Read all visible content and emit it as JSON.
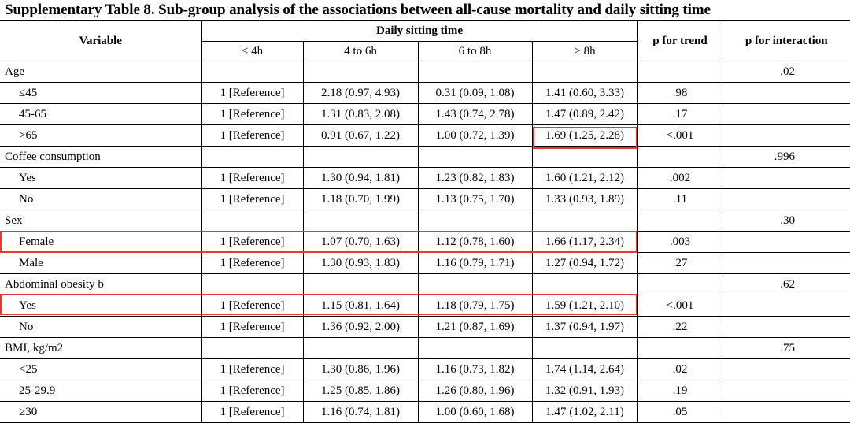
{
  "title": "Supplementary Table 8. Sub-group analysis of the associations between all-cause mortality and daily sitting time",
  "header": {
    "variable": "Variable",
    "group": "Daily sitting time",
    "p_trend": "p for trend",
    "p_interaction": "p for interaction",
    "columns": [
      "< 4h",
      "4 to 6h",
      "6 to 8h",
      "> 8h"
    ]
  },
  "rows": [
    {
      "label": "Age",
      "group": true,
      "p_interaction": ".02"
    },
    {
      "label": "≤45",
      "c1": "1 [Reference]",
      "c2": "2.18 (0.97, 4.93)",
      "c3": "0.31 (0.09, 1.08)",
      "c4": "1.41 (0.60, 3.33)",
      "p_trend": ".98"
    },
    {
      "label": "45-65",
      "c1": "1 [Reference]",
      "c2": "1.31 (0.83, 2.08)",
      "c3": "1.43 (0.74, 2.78)",
      "c4": "1.47 (0.89, 2.42)",
      "p_trend": ".17"
    },
    {
      "label": ">65",
      "c1": "1 [Reference]",
      "c2": "0.91 (0.67, 1.22)",
      "c3": "1.00 (0.72, 1.39)",
      "c4": "1.69 (1.25, 2.28)",
      "p_trend": "<.001"
    },
    {
      "label": "Coffee consumption",
      "group": true,
      "p_interaction": ".996"
    },
    {
      "label": "Yes",
      "c1": "1 [Reference]",
      "c2": "1.30 (0.94, 1.81)",
      "c3": "1.23 (0.82, 1.83)",
      "c4": "1.60 (1.21, 2.12)",
      "p_trend": ".002"
    },
    {
      "label": "No",
      "c1": "1 [Reference]",
      "c2": "1.18 (0.70, 1.99)",
      "c3": "1.13 (0.75, 1.70)",
      "c4": "1.33 (0.93, 1.89)",
      "p_trend": ".11"
    },
    {
      "label": "Sex",
      "group": true,
      "p_interaction": ".30"
    },
    {
      "label": "Female",
      "c1": "1 [Reference]",
      "c2": "1.07 (0.70, 1.63)",
      "c3": "1.12 (0.78, 1.60)",
      "c4": "1.66 (1.17, 2.34)",
      "p_trend": ".003"
    },
    {
      "label": "Male",
      "c1": "1 [Reference]",
      "c2": "1.30 (0.93, 1.83)",
      "c3": "1.16 (0.79, 1.71)",
      "c4": "1.27 (0.94, 1.72)",
      "p_trend": ".27"
    },
    {
      "label": "Abdominal obesity b",
      "group": true,
      "p_interaction": ".62"
    },
    {
      "label": "Yes",
      "c1": "1 [Reference]",
      "c2": "1.15 (0.81, 1.64)",
      "c3": "1.18 (0.79, 1.75)",
      "c4": "1.59 (1.21, 2.10)",
      "p_trend": "<.001"
    },
    {
      "label": "No",
      "c1": "1 [Reference]",
      "c2": "1.36 (0.92, 2.00)",
      "c3": "1.21 (0.87, 1.69)",
      "c4": "1.37 (0.94, 1.97)",
      "p_trend": ".22"
    },
    {
      "label": "BMI, kg/m2",
      "group": true,
      "p_interaction": ".75"
    },
    {
      "label": "<25",
      "c1": "1 [Reference]",
      "c2": "1.30 (0.86, 1.96)",
      "c3": "1.16 (0.73, 1.82)",
      "c4": "1.74 (1.14, 2.64)",
      "p_trend": ".02"
    },
    {
      "label": "25-29.9",
      "c1": "1 [Reference]",
      "c2": "1.25 (0.85, 1.86)",
      "c3": "1.26 (0.80, 1.96)",
      "c4": "1.32 (0.91, 1.93)",
      "p_trend": ".19"
    },
    {
      "label": "≥30",
      "c1": "1 [Reference]",
      "c2": "1.16 (0.74, 1.81)",
      "c3": "1.00 (0.60, 1.68)",
      "c4": "1.47 (1.02, 2.11)",
      "p_trend": ".05"
    }
  ],
  "highlight_color": "#e53935"
}
